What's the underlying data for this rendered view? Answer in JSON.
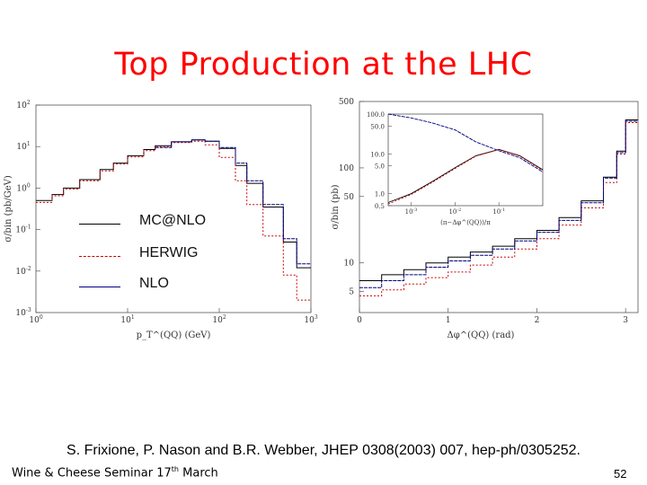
{
  "slide": {
    "title": "Top Production at the LHC",
    "citation": "S. Frixione, P. Nason and B.R. Webber, JHEP 0308(2003) 007, hep-ph/0305252.",
    "footer_left_pre": "Wine & Cheese Seminar 17",
    "footer_left_sup": "th",
    "footer_left_post": " March",
    "page_number": "52"
  },
  "legend": {
    "items": [
      {
        "label": "MC@NLO",
        "color": "#000000",
        "style": "solid"
      },
      {
        "label": "HERWIG",
        "color": "#cc0000",
        "style": "dashed"
      },
      {
        "label": "NLO",
        "color": "#000080",
        "style": "solid"
      }
    ]
  },
  "chart_data": [
    {
      "type": "line",
      "xlabel": "p_T^(QQ) (GeV)",
      "ylabel": "σ/bin (pb/GeV)",
      "xscale": "log",
      "yscale": "log",
      "xlim": [
        1,
        1000
      ],
      "ylim": [
        0.001,
        100
      ],
      "x_tick_labels": [
        "10^0",
        "10^1",
        "10^2",
        "10^3"
      ],
      "y_tick_labels": [
        "10^-3",
        "10^-2",
        "10^-1",
        "10^0",
        "10^1",
        "10^2"
      ],
      "x": [
        1,
        1.5,
        2,
        3,
        5,
        7,
        10,
        15,
        20,
        30,
        50,
        70,
        100,
        150,
        200,
        300,
        500,
        700,
        1000
      ],
      "series": [
        {
          "name": "MC@NLO",
          "color": "#000000",
          "values": [
            0.5,
            0.7,
            1.0,
            1.6,
            2.8,
            4.0,
            6.0,
            8.5,
            10.5,
            13,
            14.5,
            13.5,
            9,
            3.5,
            1.3,
            0.35,
            0.05,
            0.012,
            0.003
          ]
        },
        {
          "name": "HERWIG",
          "color": "#cc0000",
          "values": [
            0.45,
            0.65,
            0.95,
            1.5,
            2.6,
            3.8,
            5.6,
            8,
            10,
            12.5,
            13.5,
            11,
            5.5,
            1.5,
            0.4,
            0.07,
            0.008,
            0.002,
            0.001
          ]
        },
        {
          "name": "NLO",
          "color": "#000080",
          "values": [
            null,
            null,
            null,
            null,
            null,
            null,
            null,
            null,
            9.5,
            13,
            14.5,
            13.5,
            9.5,
            4,
            1.5,
            0.4,
            0.06,
            0.015,
            0.004
          ]
        }
      ]
    },
    {
      "type": "line",
      "xlabel": "Δφ^(QQ) (rad)",
      "ylabel": "σ/bin (pb)",
      "yscale": "log",
      "xlim": [
        0,
        3.14
      ],
      "ylim": [
        3,
        500
      ],
      "x_tick_labels": [
        "0",
        "1",
        "2",
        "3"
      ],
      "y_tick_labels": [
        "5",
        "10",
        "50",
        "100",
        "500"
      ],
      "x": [
        0,
        0.25,
        0.5,
        0.75,
        1,
        1.25,
        1.5,
        1.75,
        2,
        2.25,
        2.5,
        2.75,
        2.9,
        3.0,
        3.14
      ],
      "series": [
        {
          "name": "MC@NLO",
          "color": "#000000",
          "values": [
            6.5,
            7.5,
            8.5,
            10,
            11.5,
            13,
            15,
            18,
            22,
            30,
            45,
            80,
            150,
            320,
            320
          ]
        },
        {
          "name": "HERWIG",
          "color": "#cc0000",
          "values": [
            4.5,
            5.2,
            6,
            7,
            8,
            9.5,
            11.5,
            14,
            18,
            25,
            38,
            70,
            140,
            300,
            300
          ]
        },
        {
          "name": "NLO",
          "color": "#000080",
          "values": [
            5.5,
            6.5,
            7.5,
            9,
            10.5,
            12,
            14,
            17,
            21,
            28,
            43,
            78,
            145,
            310,
            310
          ]
        }
      ],
      "inset": {
        "xscale": "log",
        "yscale": "log",
        "xlabel": "(π−Δφ^(QQ))/π",
        "x_tick_labels": [
          "10^-3",
          "10^-2",
          "10^-1"
        ],
        "y_tick_labels": [
          "0.5",
          "1.0",
          "5.0",
          "10.0",
          "50.0",
          "100.0"
        ],
        "xlim": [
          0.0003,
          1
        ],
        "ylim": [
          0.5,
          100
        ],
        "x": [
          0.0003,
          0.001,
          0.003,
          0.01,
          0.03,
          0.1,
          0.3,
          1
        ],
        "series": [
          {
            "name": "MC@NLO",
            "color": "#000000",
            "values": [
              0.6,
              1.0,
              2.0,
              4.5,
              9.0,
              13.0,
              9.0,
              4.0
            ]
          },
          {
            "name": "HERWIG",
            "color": "#cc0000",
            "values": [
              0.55,
              0.95,
              1.9,
              4.3,
              8.8,
              12.8,
              8.8,
              3.8
            ]
          },
          {
            "name": "NLO",
            "color": "#000080",
            "values": [
              100,
              80,
              60,
              40,
              20,
              12,
              8,
              3.5
            ]
          }
        ]
      }
    }
  ]
}
